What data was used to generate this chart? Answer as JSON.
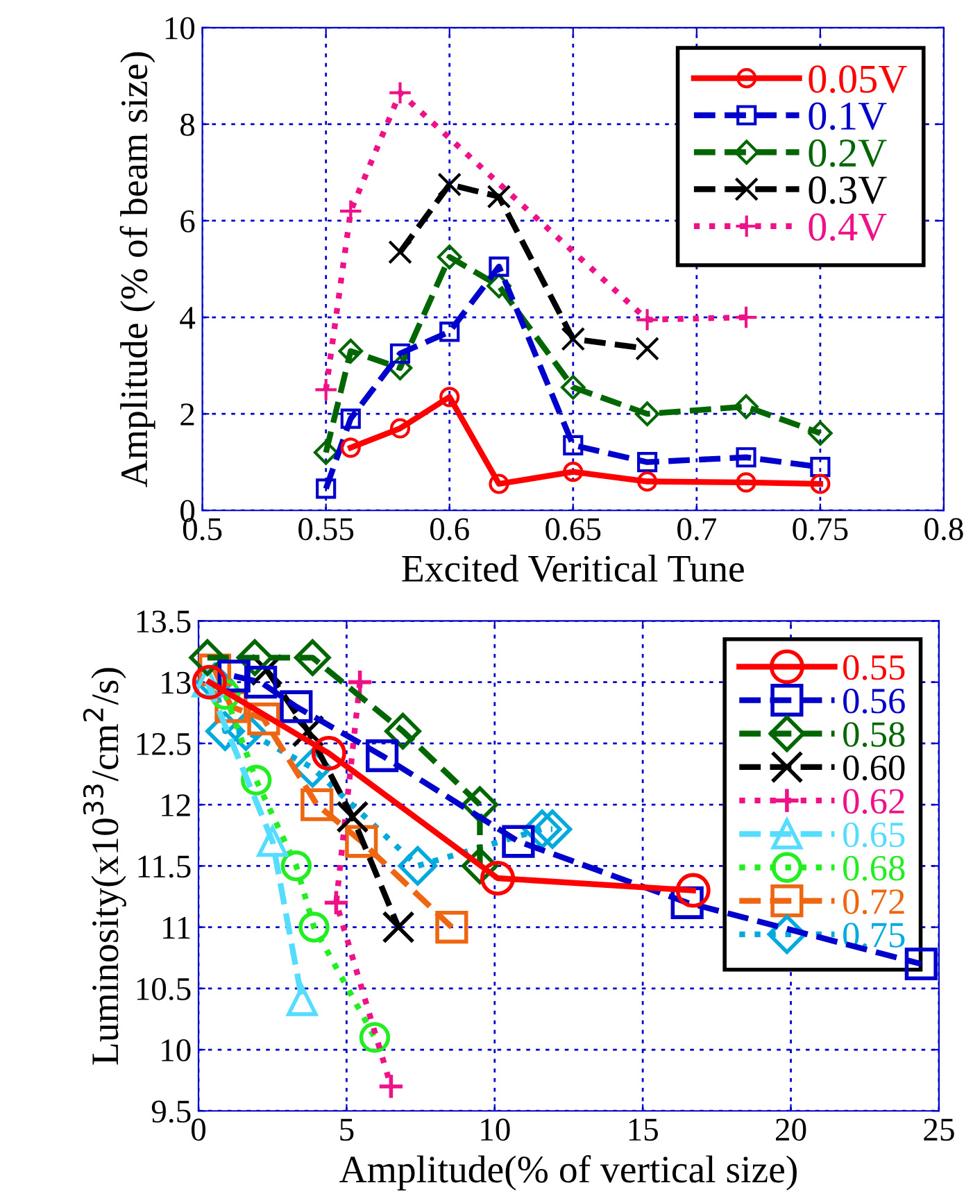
{
  "chart_data": [
    {
      "type": "line",
      "xlabel": "Excited Veritical Tune",
      "ylabel": "Amplitude (% of beam size)",
      "xlim": [
        0.5,
        0.8
      ],
      "xticks": [
        {
          "value": 0.5,
          "label": "0.5"
        },
        {
          "value": 0.55,
          "label": "0.55"
        },
        {
          "value": 0.6,
          "label": "0.6"
        },
        {
          "value": 0.65,
          "label": "0.65"
        },
        {
          "value": 0.7,
          "label": "0.7"
        },
        {
          "value": 0.75,
          "label": "0.75"
        },
        {
          "value": 0.8,
          "label": "0.8"
        }
      ],
      "ylim": [
        0,
        10
      ],
      "yticks": [
        0,
        2,
        4,
        6,
        8,
        10
      ],
      "grid": true,
      "legend": "top right",
      "series": [
        {
          "name": "0.05V",
          "color": "#ff0000",
          "marker": "circle",
          "line_style": "solid",
          "x": [
            0.56,
            0.58,
            0.6,
            0.62,
            0.65,
            0.68,
            0.72,
            0.75
          ],
          "values": [
            1.3,
            1.7,
            2.35,
            0.55,
            0.8,
            0.6,
            0.58,
            0.55
          ]
        },
        {
          "name": "0.1V",
          "color": "#0000cc",
          "marker": "square",
          "line_style": "dashed",
          "x": [
            0.55,
            0.56,
            0.58,
            0.6,
            0.62,
            0.65,
            0.68,
            0.72,
            0.75
          ],
          "values": [
            0.45,
            1.9,
            3.25,
            3.7,
            5.05,
            1.35,
            1.0,
            1.1,
            0.9
          ]
        },
        {
          "name": "0.2V",
          "color": "#006600",
          "marker": "diamond",
          "line_style": "dashed",
          "x": [
            0.55,
            0.56,
            0.58,
            0.6,
            0.62,
            0.65,
            0.68,
            0.72,
            0.75
          ],
          "values": [
            1.2,
            3.3,
            2.95,
            5.25,
            4.65,
            2.55,
            2.0,
            2.15,
            1.6
          ]
        },
        {
          "name": "0.3V",
          "color": "#000000",
          "marker": "cross",
          "line_style": "dashed",
          "x": [
            0.58,
            0.6,
            0.62,
            0.65,
            0.68
          ],
          "values": [
            5.35,
            6.75,
            6.5,
            3.55,
            3.35
          ]
        },
        {
          "name": "0.4V",
          "color": "#ee1188",
          "marker": "plus",
          "line_style": "dotted",
          "x": [
            0.55,
            0.56,
            0.58,
            0.68,
            0.72
          ],
          "values": [
            2.5,
            6.2,
            8.65,
            3.95,
            4.0
          ]
        }
      ]
    },
    {
      "type": "line",
      "xlabel": "Amplitude(% of vertical size)",
      "ylabel": "Luminosity(x10$^{33}$/cm$^{2}$/s)",
      "xlim": [
        0,
        25
      ],
      "xticks": [
        0,
        5,
        10,
        15,
        20,
        25
      ],
      "ylim": [
        9.5,
        13.5
      ],
      "yticks": [
        {
          "value": 9.5,
          "label": "9.5"
        },
        {
          "value": 10,
          "label": "10"
        },
        {
          "value": 10.5,
          "label": "10.5"
        },
        {
          "value": 11,
          "label": "11"
        },
        {
          "value": 11.5,
          "label": "11.5"
        },
        {
          "value": 12,
          "label": "12"
        },
        {
          "value": 12.5,
          "label": "12.5"
        },
        {
          "value": 13,
          "label": "13"
        },
        {
          "value": 13.5,
          "label": "13.5"
        }
      ],
      "grid": true,
      "legend": "top right",
      "series": [
        {
          "name": "0.55",
          "color": "#ff0000",
          "marker": "circle",
          "line_style": "solid",
          "x": [
            0.37,
            4.4,
            10.1,
            16.7
          ],
          "values": [
            13.0,
            12.42,
            11.4,
            11.3
          ]
        },
        {
          "name": "0.56",
          "color": "#0000cc",
          "marker": "square",
          "line_style": "dashed",
          "x": [
            1.2,
            2.1,
            3.3,
            6.2,
            10.8,
            16.5,
            24.4
          ],
          "values": [
            13.05,
            13.0,
            12.8,
            12.4,
            11.7,
            11.2,
            10.7
          ]
        },
        {
          "name": "0.58",
          "color": "#006600",
          "marker": "diamond",
          "line_style": "dashed",
          "x": [
            0.3,
            1.9,
            3.85,
            6.9,
            9.5,
            9.5
          ],
          "values": [
            13.2,
            13.2,
            13.2,
            12.6,
            12.0,
            11.5
          ]
        },
        {
          "name": "0.60",
          "color": "#000000",
          "marker": "cross",
          "line_style": "dashed",
          "x": [
            2.3,
            3.7,
            5.2,
            6.75
          ],
          "values": [
            13.1,
            12.6,
            11.9,
            11.0
          ]
        },
        {
          "name": "0.62",
          "color": "#ee1188",
          "marker": "plus",
          "line_style": "dotted",
          "x": [
            5.45,
            4.65,
            6.5
          ],
          "values": [
            13.0,
            11.2,
            9.7
          ]
        },
        {
          "name": "0.65",
          "color": "#55ddff",
          "marker": "triangle",
          "line_style": "dashed",
          "x": [
            0.3,
            2.5,
            3.5
          ],
          "values": [
            13.0,
            11.7,
            10.4
          ]
        },
        {
          "name": "0.68",
          "color": "#22ee22",
          "marker": "circle",
          "line_style": "dotted",
          "x": [
            0.9,
            1.95,
            3.3,
            3.9,
            5.95
          ],
          "values": [
            12.9,
            12.2,
            11.5,
            11.0,
            10.1
          ]
        },
        {
          "name": "0.72",
          "color": "#ee6611",
          "marker": "square",
          "line_style": "dashed",
          "x": [
            0.55,
            1.1,
            2.2,
            4.0,
            5.5,
            8.55
          ],
          "values": [
            13.1,
            12.8,
            12.7,
            12.0,
            11.7,
            11.0
          ]
        },
        {
          "name": "0.75",
          "color": "#00aadd",
          "marker": "diamond",
          "line_style": "dotted",
          "x": [
            0.55,
            0.9,
            1.6,
            3.85,
            7.4,
            11.6,
            11.95
          ],
          "values": [
            13.0,
            12.6,
            12.6,
            12.3,
            11.5,
            11.8,
            11.8
          ]
        }
      ]
    }
  ]
}
